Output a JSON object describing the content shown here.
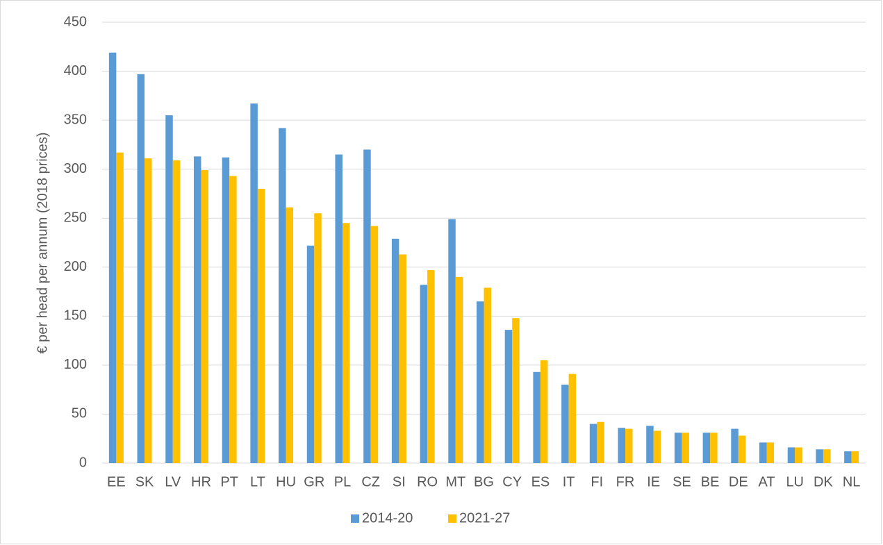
{
  "chart_data": {
    "type": "bar",
    "y_label": "€ per head per annum (2018 prices)",
    "categories": [
      "EE",
      "SK",
      "LV",
      "HR",
      "PT",
      "LT",
      "HU",
      "GR",
      "PL",
      "CZ",
      "SI",
      "RO",
      "MT",
      "BG",
      "CY",
      "ES",
      "IT",
      "FI",
      "FR",
      "IE",
      "SE",
      "BE",
      "DE",
      "AT",
      "LU",
      "DK",
      "NL"
    ],
    "series": [
      {
        "name": "2014-20",
        "color": "#5b9bd5",
        "values": [
          419,
          397,
          355,
          313,
          312,
          367,
          342,
          222,
          315,
          320,
          229,
          182,
          249,
          165,
          136,
          93,
          80,
          40,
          36,
          38,
          31,
          31,
          35,
          21,
          16,
          14,
          12
        ]
      },
      {
        "name": "2021-27",
        "color": "#ffc000",
        "values": [
          317,
          311,
          309,
          299,
          293,
          280,
          261,
          255,
          245,
          242,
          213,
          197,
          190,
          179,
          148,
          105,
          91,
          42,
          35,
          33,
          31,
          31,
          28,
          21,
          16,
          14,
          12
        ]
      }
    ],
    "ylim": [
      0,
      450
    ],
    "yticks": [
      0,
      50,
      100,
      150,
      200,
      250,
      300,
      350,
      400,
      450
    ],
    "grid": true,
    "legend": "bottom"
  }
}
